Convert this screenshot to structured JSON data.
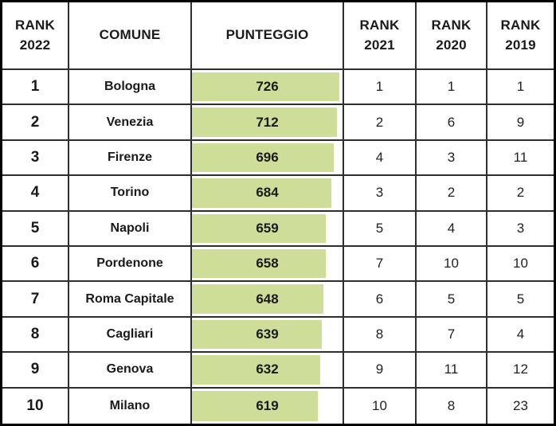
{
  "table": {
    "columns": [
      {
        "key": "rank2022",
        "label": "RANK 2022"
      },
      {
        "key": "comune",
        "label": "COMUNE"
      },
      {
        "key": "punteggio",
        "label": "PUNTEGGIO"
      },
      {
        "key": "rank2021",
        "label": "RANK 2021"
      },
      {
        "key": "rank2020",
        "label": "RANK 2020"
      },
      {
        "key": "rank2019",
        "label": "RANK 2019"
      }
    ],
    "rows": [
      {
        "rank2022": "1",
        "comune": "Bologna",
        "punteggio": "726",
        "rank2021": "1",
        "rank2020": "1",
        "rank2019": "1"
      },
      {
        "rank2022": "2",
        "comune": "Venezia",
        "punteggio": "712",
        "rank2021": "2",
        "rank2020": "6",
        "rank2019": "9"
      },
      {
        "rank2022": "3",
        "comune": "Firenze",
        "punteggio": "696",
        "rank2021": "4",
        "rank2020": "3",
        "rank2019": "11"
      },
      {
        "rank2022": "4",
        "comune": "Torino",
        "punteggio": "684",
        "rank2021": "3",
        "rank2020": "2",
        "rank2019": "2"
      },
      {
        "rank2022": "5",
        "comune": "Napoli",
        "punteggio": "659",
        "rank2021": "5",
        "rank2020": "4",
        "rank2019": "3"
      },
      {
        "rank2022": "6",
        "comune": "Pordenone",
        "punteggio": "658",
        "rank2021": "7",
        "rank2020": "10",
        "rank2019": "10"
      },
      {
        "rank2022": "7",
        "comune": "Roma Capitale",
        "punteggio": "648",
        "rank2021": "6",
        "rank2020": "5",
        "rank2019": "5"
      },
      {
        "rank2022": "8",
        "comune": "Cagliari",
        "punteggio": "639",
        "rank2021": "8",
        "rank2020": "7",
        "rank2019": "4"
      },
      {
        "rank2022": "9",
        "comune": "Genova",
        "punteggio": "632",
        "rank2021": "9",
        "rank2020": "11",
        "rank2019": "12"
      },
      {
        "rank2022": "10",
        "comune": "Milano",
        "punteggio": "619",
        "rank2021": "10",
        "rank2020": "8",
        "rank2019": "23"
      }
    ],
    "databar": {
      "color": "#cedd97",
      "max_value": 726,
      "max_width_pct": 98
    }
  },
  "chart_data": {
    "type": "table",
    "title": "",
    "columns": [
      "RANK 2022",
      "COMUNE",
      "PUNTEGGIO",
      "RANK 2021",
      "RANK 2020",
      "RANK 2019"
    ],
    "rows": [
      [
        1,
        "Bologna",
        726,
        1,
        1,
        1
      ],
      [
        2,
        "Venezia",
        712,
        2,
        6,
        9
      ],
      [
        3,
        "Firenze",
        696,
        4,
        3,
        11
      ],
      [
        4,
        "Torino",
        684,
        3,
        2,
        2
      ],
      [
        5,
        "Napoli",
        659,
        5,
        4,
        3
      ],
      [
        6,
        "Pordenone",
        658,
        7,
        10,
        10
      ],
      [
        7,
        "Roma Capitale",
        648,
        6,
        5,
        5
      ],
      [
        8,
        "Cagliari",
        639,
        8,
        7,
        4
      ],
      [
        9,
        "Genova",
        632,
        9,
        11,
        12
      ],
      [
        10,
        "Milano",
        619,
        10,
        8,
        23
      ]
    ],
    "databar_column": "PUNTEGGIO",
    "databar_range": [
      0,
      726
    ],
    "databar_color": "#cedd97"
  }
}
